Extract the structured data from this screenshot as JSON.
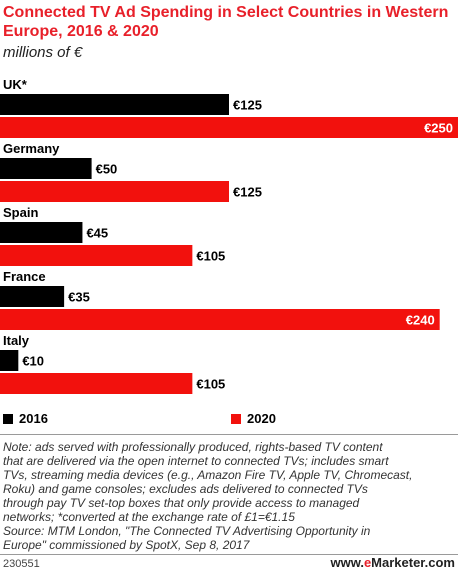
{
  "chart_data": {
    "type": "bar",
    "orientation": "horizontal",
    "title": "Connected TV Ad Spending in Select Countries in Western Europe, 2016 & 2020",
    "subtitle": "millions of €",
    "categories": [
      "UK*",
      "Germany",
      "Spain",
      "France",
      "Italy"
    ],
    "series": [
      {
        "name": "2016",
        "color": "#000000",
        "values": [
          125,
          50,
          45,
          35,
          10
        ],
        "labels": [
          "€125",
          "€50",
          "€45",
          "€35",
          "€10"
        ]
      },
      {
        "name": "2020",
        "color": "#f2110d",
        "values": [
          250,
          125,
          105,
          240,
          105
        ],
        "labels": [
          "€250",
          "€125",
          "€105",
          "€240",
          "€105"
        ]
      }
    ],
    "xlim": [
      0,
      250
    ],
    "grid": false,
    "legend": "bottom-left"
  },
  "note": {
    "lines": [
      "Note: ads served with professionally produced, rights-based TV content",
      "that are delivered via the open internet to connected TVs; includes smart",
      "TVs, streaming media devices (e.g., Amazon Fire TV, Apple TV, Chromecast,",
      "Roku) and game consoles; excludes ads delivered to connected TVs",
      "through pay TV set-top boxes that only provide access to managed",
      "networks; *converted at the exchange rate of £1=€1.15",
      "Source: MTM London, \"The Connected TV Advertising Opportunity in",
      "Europe\" commissioned by SpotX, Sep 8, 2017"
    ]
  },
  "footer": {
    "chart_id": "230551",
    "brand_prefix": "www.",
    "brand_accent": "e",
    "brand_suffix": "Marketer.com"
  }
}
